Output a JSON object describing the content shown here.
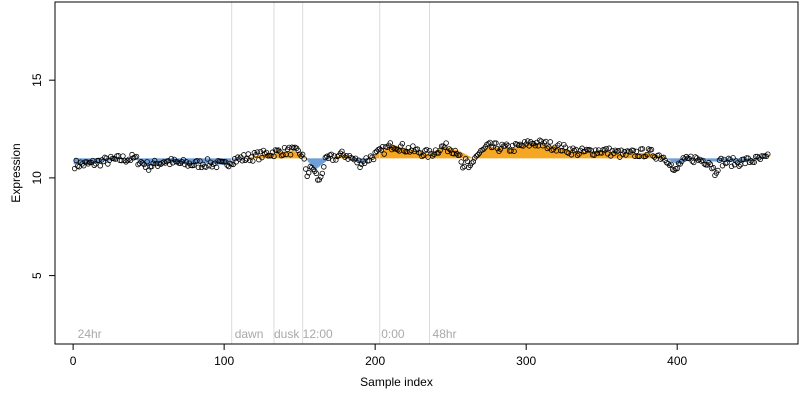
{
  "chart_data": {
    "type": "scatter",
    "title": "",
    "xlabel": "Sample index",
    "ylabel": "Expression",
    "xlim": [
      -12,
      480
    ],
    "ylim": [
      1.5,
      19
    ],
    "x_ticks": [
      0,
      100,
      200,
      300,
      400
    ],
    "y_ticks": [
      5,
      10,
      15
    ],
    "baseline": 11.0,
    "grid": false,
    "legend": "none",
    "colors": {
      "above": "#f5a623",
      "below": "#6f9fd8",
      "point_stroke": "#000000",
      "divider": "#dcdcdc",
      "phase_label": "#a9a9a9"
    },
    "phase_dividers": [
      105,
      133,
      152,
      203,
      236
    ],
    "phase_labels": [
      {
        "x": 3,
        "text": "24hr"
      },
      {
        "x": 107,
        "text": "dawn"
      },
      {
        "x": 133,
        "text": "dusk"
      },
      {
        "x": 152,
        "text": "12:00"
      },
      {
        "x": 204,
        "text": "0:00"
      },
      {
        "x": 238,
        "text": "48hr"
      }
    ],
    "trend_knots": [
      [
        1,
        10.7
      ],
      [
        10,
        10.7
      ],
      [
        20,
        10.85
      ],
      [
        30,
        10.95
      ],
      [
        40,
        11.0
      ],
      [
        50,
        10.6
      ],
      [
        60,
        10.85
      ],
      [
        70,
        10.75
      ],
      [
        80,
        10.7
      ],
      [
        90,
        10.75
      ],
      [
        100,
        10.65
      ],
      [
        105,
        10.9
      ],
      [
        120,
        11.1
      ],
      [
        133,
        11.3
      ],
      [
        145,
        11.4
      ],
      [
        152,
        11.2
      ],
      [
        160,
        10.4
      ],
      [
        170,
        11.0
      ],
      [
        180,
        11.2
      ],
      [
        190,
        10.75
      ],
      [
        203,
        11.3
      ],
      [
        212,
        11.7
      ],
      [
        220,
        11.5
      ],
      [
        236,
        11.2
      ],
      [
        245,
        11.6
      ],
      [
        255,
        11.4
      ],
      [
        265,
        11.0
      ],
      [
        275,
        11.6
      ],
      [
        290,
        11.5
      ],
      [
        305,
        11.8
      ],
      [
        320,
        11.6
      ],
      [
        335,
        11.3
      ],
      [
        350,
        11.4
      ],
      [
        365,
        11.2
      ],
      [
        380,
        11.3
      ],
      [
        390,
        11.1
      ],
      [
        400,
        10.7
      ],
      [
        410,
        11.0
      ],
      [
        420,
        10.85
      ],
      [
        440,
        10.8
      ],
      [
        460,
        11.0
      ]
    ],
    "dip_knots": [
      [
        155,
        10.2
      ],
      [
        163,
        9.8
      ],
      [
        258,
        10.4
      ],
      [
        262,
        10.4
      ],
      [
        398,
        10.25
      ],
      [
        425,
        10.3
      ]
    ],
    "n_points": 460
  }
}
